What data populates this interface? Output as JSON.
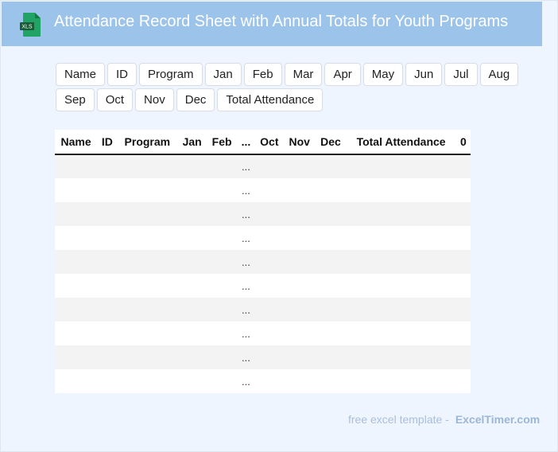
{
  "header": {
    "title": "Attendance Record Sheet with Annual Totals for Youth Programs",
    "icon": "excel-xls-file-icon",
    "icon_label": "XLS"
  },
  "column_chips": [
    "Name",
    "ID",
    "Program",
    "Jan",
    "Feb",
    "Mar",
    "Apr",
    "May",
    "Jun",
    "Jul",
    "Aug",
    "Sep",
    "Oct",
    "Nov",
    "Dec",
    "Total Attendance"
  ],
  "table": {
    "headers": [
      "Name",
      "ID",
      "Program",
      "Jan",
      "Feb",
      "...",
      "Oct",
      "Nov",
      "Dec",
      "Total Attendance",
      "0"
    ],
    "rows": [
      [
        "",
        "",
        "",
        "",
        "",
        "...",
        "",
        "",
        "",
        "",
        ""
      ],
      [
        "",
        "",
        "",
        "",
        "",
        "...",
        "",
        "",
        "",
        "",
        ""
      ],
      [
        "",
        "",
        "",
        "",
        "",
        "...",
        "",
        "",
        "",
        "",
        ""
      ],
      [
        "",
        "",
        "",
        "",
        "",
        "...",
        "",
        "",
        "",
        "",
        ""
      ],
      [
        "",
        "",
        "",
        "",
        "",
        "...",
        "",
        "",
        "",
        "",
        ""
      ],
      [
        "",
        "",
        "",
        "",
        "",
        "...",
        "",
        "",
        "",
        "",
        ""
      ],
      [
        "",
        "",
        "",
        "",
        "",
        "...",
        "",
        "",
        "",
        "",
        ""
      ],
      [
        "",
        "",
        "",
        "",
        "",
        "...",
        "",
        "",
        "",
        "",
        ""
      ],
      [
        "",
        "",
        "",
        "",
        "",
        "...",
        "",
        "",
        "",
        "",
        ""
      ],
      [
        "",
        "",
        "",
        "",
        "",
        "...",
        "",
        "",
        "",
        "",
        ""
      ]
    ]
  },
  "footer": {
    "text": "free excel template -",
    "brand": "ExcelTimer.com"
  },
  "colors": {
    "header_bg": "#9cc3ea",
    "page_bg": "#eef5fe",
    "excel_green": "#1e7145"
  }
}
